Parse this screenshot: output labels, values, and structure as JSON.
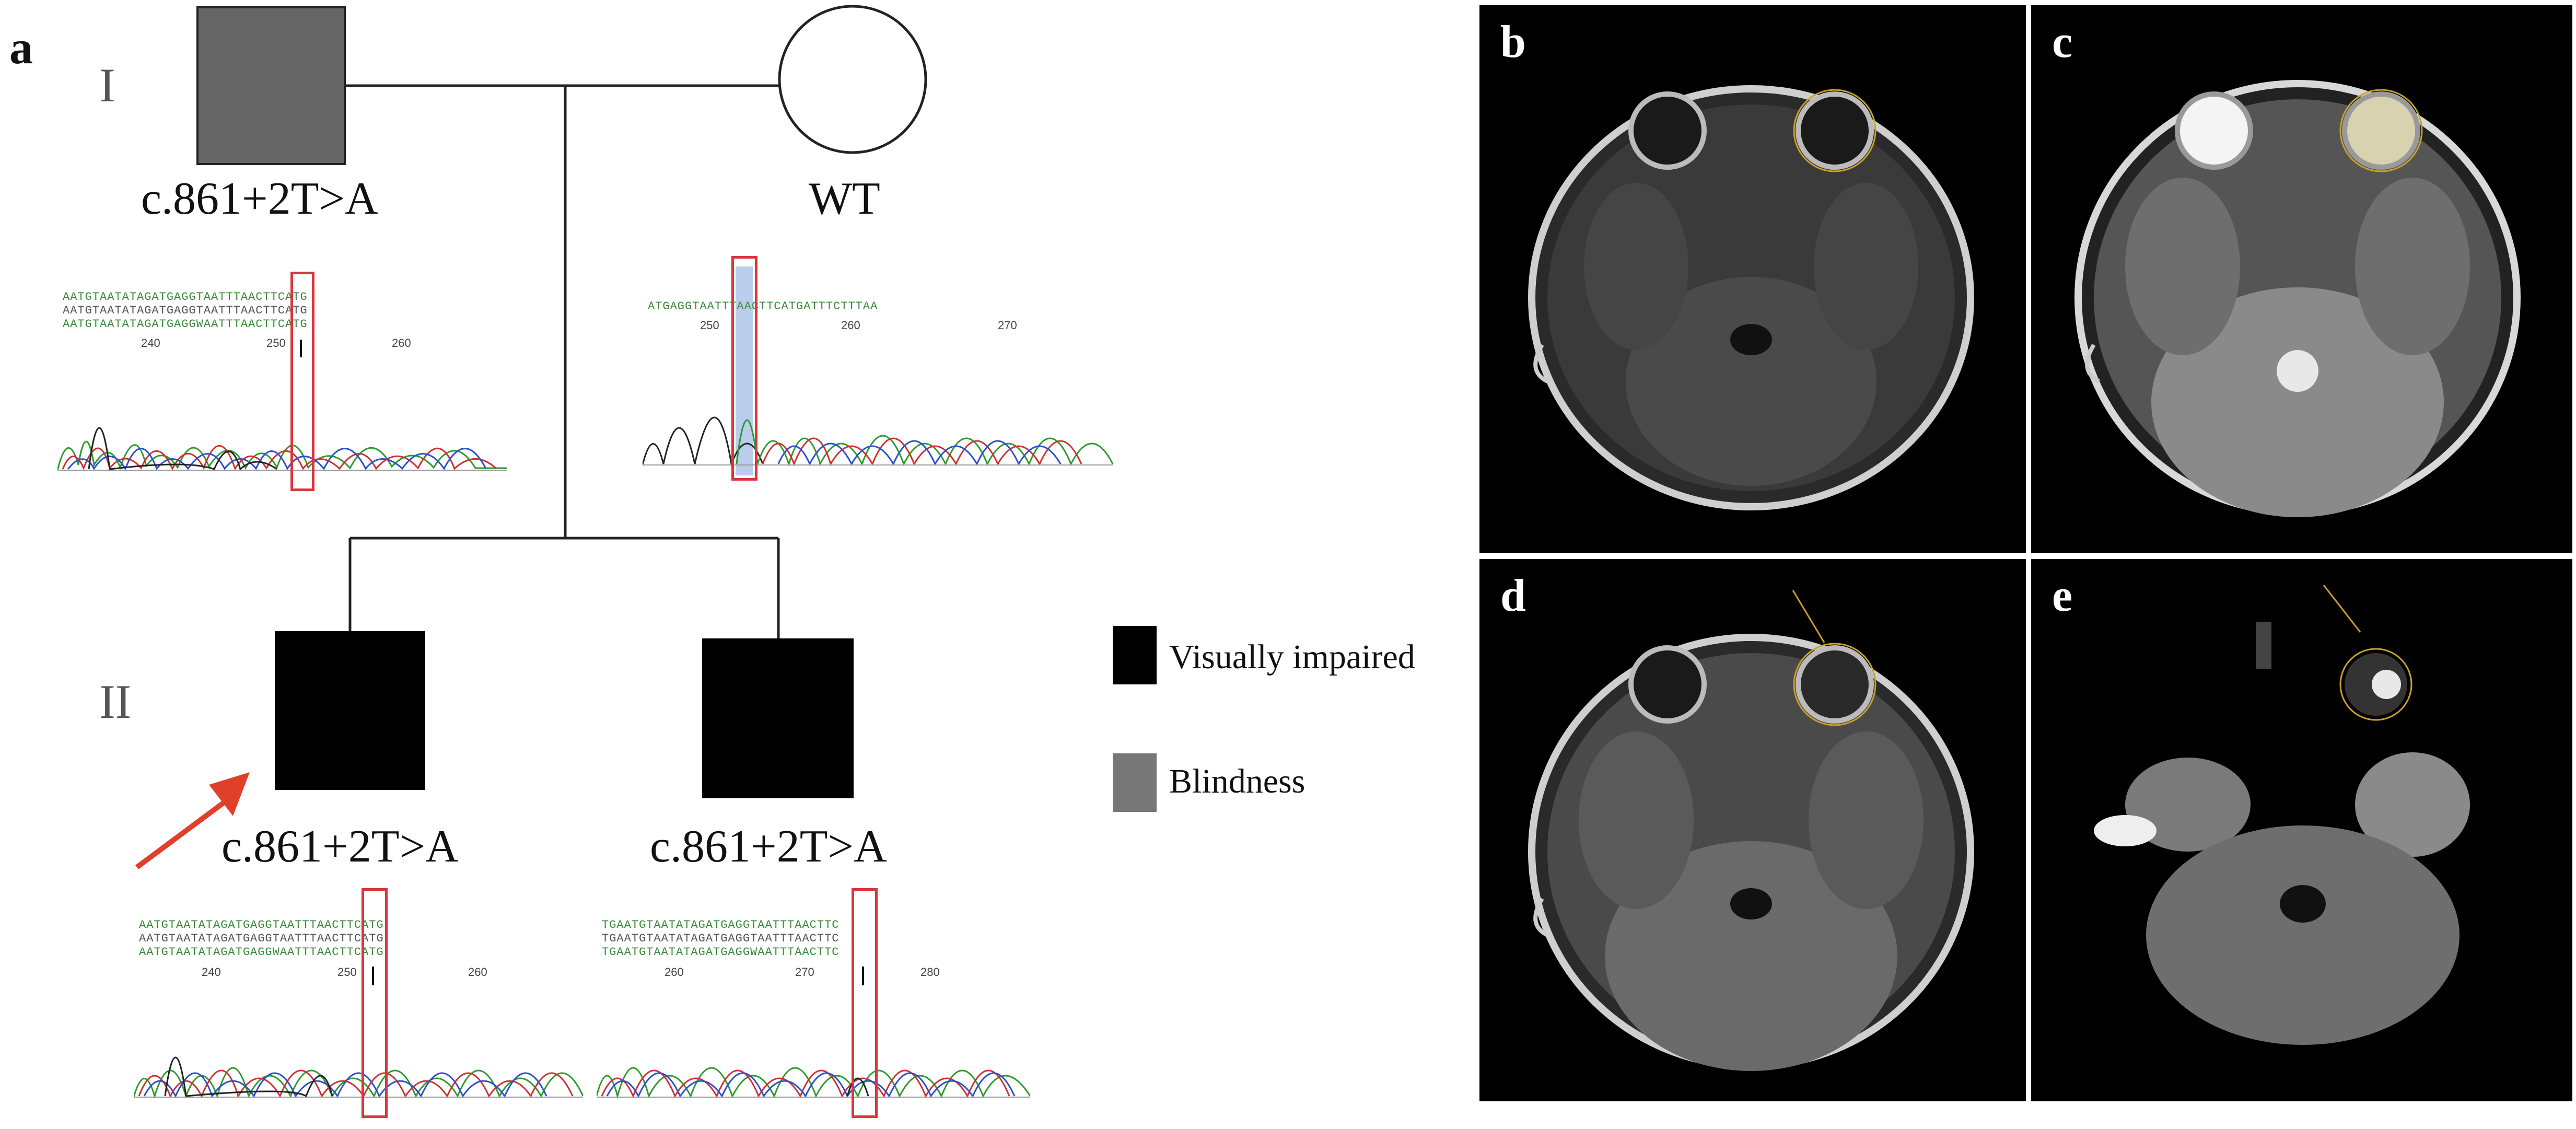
{
  "figure": {
    "panels": {
      "a": "a",
      "b": "b",
      "c": "c",
      "d": "d",
      "e": "e"
    },
    "generations": {
      "I": "I",
      "II": "II"
    },
    "pedigree": {
      "father_label": "c.861+2T>A",
      "mother_label": "WT",
      "proband_label": "c.861+2T>A",
      "sibling_label": "c.861+2T>A"
    },
    "legend": {
      "visually_impaired": "Visually impaired",
      "blindness": "Blindness",
      "colors": {
        "visually_impaired": "#000000",
        "blindness": "#777777"
      }
    },
    "chromatograms": {
      "father": {
        "seq_top": "AATGTAATATAGATGAGGTAATTTAACTTCATG",
        "seq_mid": "AATGTAATATAGATGAGGTAATTTAACTTCATG",
        "seq_bot": "AATGTAATATAGATGAGGWAATTTAACTTCATG",
        "ticks": [
          "240",
          "250",
          "260"
        ]
      },
      "mother": {
        "seq_top": "ATGAGGTAATTTAACTTCATGATTTCTTTAA",
        "ticks": [
          "250",
          "260",
          "270"
        ]
      },
      "proband": {
        "seq_top": "AATGTAATATAGATGAGGTAATTTAACTTCATG",
        "seq_mid": "AATGTAATATAGATGAGGTAATTTAACTTCATG",
        "seq_bot": "AATGTAATATAGATGAGGWAATTTAACTTCATG",
        "ticks": [
          "240",
          "250",
          "260"
        ]
      },
      "sibling": {
        "seq_top": "TGAATGTAATATAGATGAGGTAATTTAACTTC",
        "seq_mid": "TGAATGTAATATAGATGAGGTAATTTAACTTC",
        "seq_bot": "TGAATGTAATATAGATGAGGWAATTTAACTTC",
        "ticks": [
          "260",
          "270",
          "280"
        ]
      }
    },
    "colors": {
      "highlight": "#d9363e",
      "arrow": "#e0402a",
      "mother_highlight": "#9db8e6"
    }
  }
}
